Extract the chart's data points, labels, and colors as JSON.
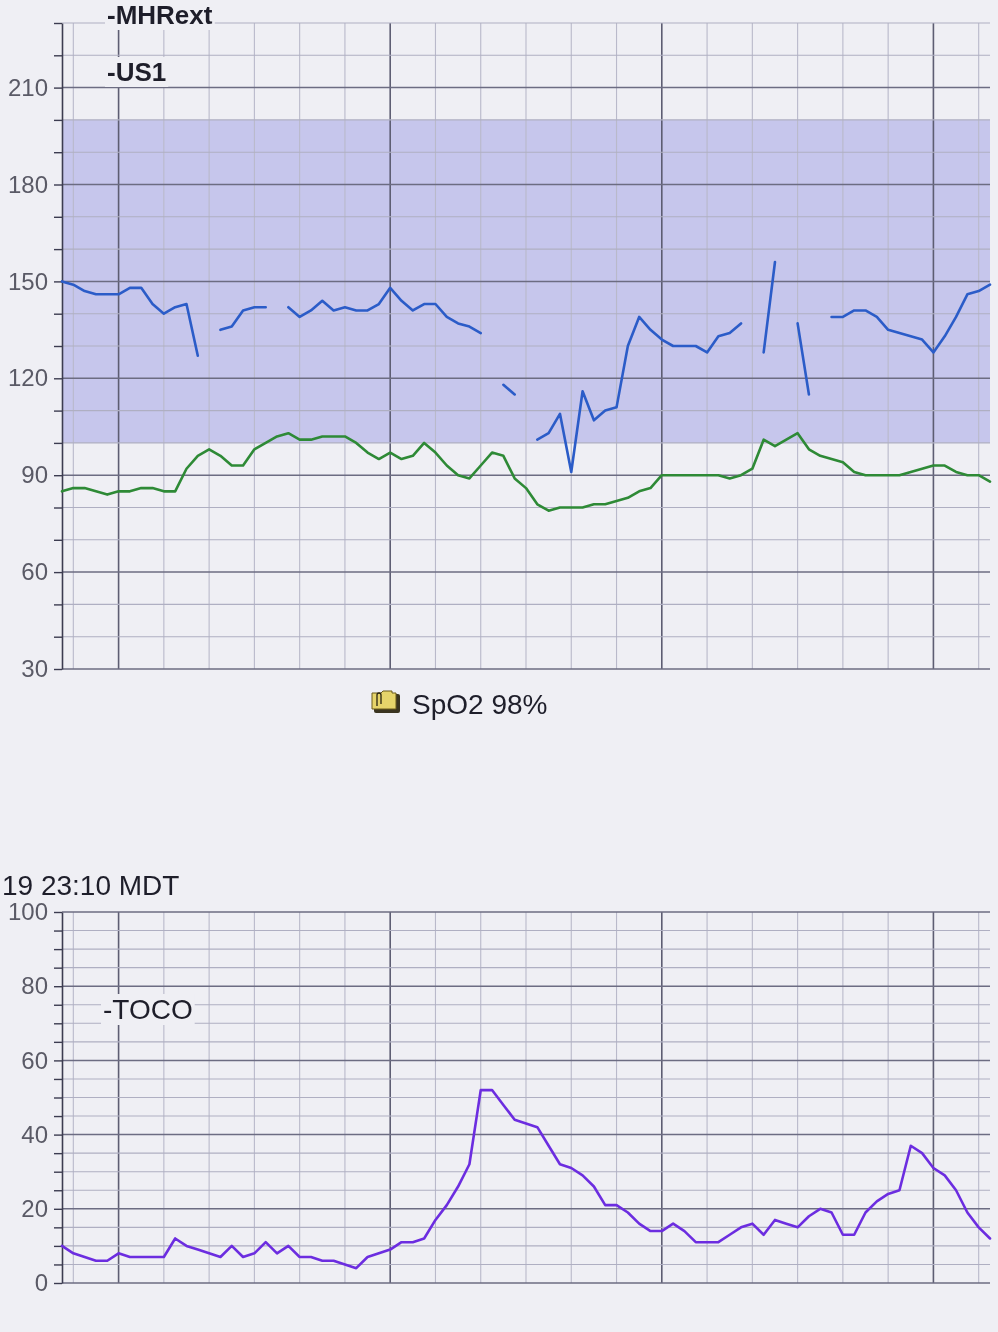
{
  "chart_data": [
    {
      "type": "line",
      "annotations": [
        "-MHRext",
        "-US1",
        "SpO2 98%"
      ],
      "categories": [
        null,
        null,
        null,
        null,
        null,
        null,
        null,
        null,
        null,
        null,
        null,
        null,
        null,
        null,
        null,
        null,
        null,
        null,
        null,
        null,
        null,
        null,
        null,
        null,
        null,
        null,
        null,
        null,
        null,
        null,
        null,
        null,
        null,
        null,
        null,
        null,
        null,
        null,
        null,
        null,
        null,
        null,
        null,
        null,
        null,
        null,
        null,
        null,
        null,
        null,
        null,
        null,
        null,
        null,
        null,
        null,
        null,
        null,
        null,
        null,
        null,
        null,
        null,
        null,
        null,
        null,
        null,
        null,
        null,
        null,
        null,
        null,
        null,
        null,
        null,
        null,
        null,
        null,
        null,
        null,
        null,
        null,
        null
      ],
      "series": [
        {
          "color": "#2b5cc8",
          "values": [
            150,
            149,
            147,
            146,
            146,
            146,
            148,
            148,
            143,
            140,
            142,
            143,
            127,
            null,
            135,
            136,
            141,
            142,
            142,
            null,
            142,
            139,
            141,
            144,
            141,
            142,
            141,
            141,
            143,
            148,
            144,
            141,
            143,
            143,
            139,
            137,
            136,
            134,
            null,
            118,
            115,
            null,
            101,
            103,
            109,
            91,
            116,
            107,
            110,
            111,
            130,
            139,
            135,
            132,
            130,
            130,
            130,
            128,
            133,
            134,
            137,
            null,
            128,
            156,
            null,
            137,
            115,
            null,
            139,
            139,
            141,
            141,
            139,
            135,
            134,
            133,
            132,
            128,
            133,
            139,
            146,
            147,
            149
          ]
        },
        {
          "color": "#2e8a36",
          "values": [
            85,
            86,
            86,
            85,
            84,
            85,
            85,
            86,
            86,
            85,
            85,
            92,
            96,
            98,
            96,
            93,
            93,
            98,
            100,
            102,
            103,
            101,
            101,
            102,
            102,
            102,
            100,
            97,
            95,
            97,
            95,
            96,
            100,
            97,
            93,
            90,
            89,
            93,
            97,
            96,
            89,
            86,
            81,
            79,
            80,
            80,
            80,
            81,
            81,
            82,
            83,
            85,
            86,
            90,
            90,
            90,
            90,
            90,
            90,
            89,
            90,
            92,
            101,
            99,
            101,
            103,
            98,
            96,
            95,
            94,
            91,
            90,
            90,
            90,
            90,
            91,
            92,
            93,
            93,
            91,
            90,
            90,
            88
          ]
        }
      ],
      "ylim": [
        30,
        230
      ],
      "yticks": [
        30,
        {
          "value": 40,
          "label": null
        },
        {
          "value": 50,
          "label": null
        },
        60,
        {
          "value": 70,
          "label": null
        },
        {
          "value": 80,
          "label": null
        },
        90,
        {
          "value": 100,
          "label": null
        },
        {
          "value": 110,
          "label": null
        },
        120,
        {
          "value": 130,
          "label": null
        },
        {
          "value": 140,
          "label": null
        },
        150,
        {
          "value": 160,
          "label": null
        },
        {
          "value": 170,
          "label": null
        },
        180,
        {
          "value": 190,
          "label": null
        },
        {
          "value": 200,
          "label": null
        },
        210,
        {
          "value": 220,
          "label": null
        },
        {
          "value": 230,
          "label": null
        }
      ],
      "bands": [
        {
          "axis": "y",
          "from": 100,
          "to": 200,
          "color": "#c6c6ec"
        }
      ],
      "grid": true,
      "tick_labels": "y"
    },
    {
      "type": "line",
      "annotations": [
        "19 23:10 MDT",
        "-TOCO"
      ],
      "categories": [
        null,
        null,
        null,
        null,
        null,
        null,
        null,
        null,
        null,
        null,
        null,
        null,
        null,
        null,
        null,
        null,
        null,
        null,
        null,
        null,
        null,
        null,
        null,
        null,
        null,
        null,
        null,
        null,
        null,
        null,
        null,
        null,
        null,
        null,
        null,
        null,
        null,
        null,
        null,
        null,
        null,
        null,
        null,
        null,
        null,
        null,
        null,
        null,
        null,
        null,
        null,
        null,
        null,
        null,
        null,
        null,
        null,
        null,
        null,
        null,
        null,
        null,
        null,
        null,
        null,
        null,
        null,
        null,
        null,
        null,
        null,
        null,
        null,
        null,
        null,
        null,
        null,
        null,
        null,
        null,
        null,
        null,
        null
      ],
      "series": [
        {
          "color": "#6c2de0",
          "values": [
            10,
            8,
            7,
            6,
            6,
            8,
            7,
            7,
            7,
            7,
            12,
            10,
            9,
            8,
            7,
            10,
            7,
            8,
            11,
            8,
            10,
            7,
            7,
            6,
            6,
            5,
            4,
            7,
            8,
            9,
            11,
            11,
            12,
            17,
            21,
            26,
            32,
            52,
            52,
            48,
            44,
            43,
            42,
            37,
            32,
            31,
            29,
            26,
            21,
            21,
            19,
            16,
            14,
            14,
            16,
            14,
            11,
            11,
            11,
            13,
            15,
            16,
            13,
            17,
            16,
            15,
            18,
            20,
            19,
            13,
            13,
            19,
            22,
            24,
            25,
            37,
            35,
            31,
            29,
            25,
            19,
            15,
            12
          ]
        }
      ],
      "ylim": [
        0,
        100
      ],
      "yticks": [
        0,
        {
          "value": 5,
          "label": null
        },
        {
          "value": 10,
          "label": null
        },
        {
          "value": 15,
          "label": null
        },
        20,
        {
          "value": 25,
          "label": null
        },
        {
          "value": 30,
          "label": null
        },
        {
          "value": 35,
          "label": null
        },
        40,
        {
          "value": 45,
          "label": null
        },
        {
          "value": 50,
          "label": null
        },
        {
          "value": 55,
          "label": null
        },
        60,
        {
          "value": 65,
          "label": null
        },
        {
          "value": 70,
          "label": null
        },
        {
          "value": 75,
          "label": null
        },
        80,
        {
          "value": 85,
          "label": null
        },
        {
          "value": 90,
          "label": null
        },
        {
          "value": 95,
          "label": null
        },
        100
      ],
      "grid": true,
      "tick_labels": "y"
    }
  ]
}
